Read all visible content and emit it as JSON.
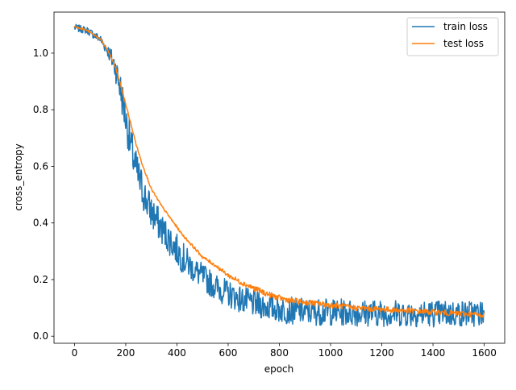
{
  "chart_data": {
    "type": "line",
    "title": "",
    "xlabel": "epoch",
    "ylabel": "cross_entropy",
    "xlim": [
      -80,
      1680
    ],
    "ylim": [
      -0.025,
      1.145
    ],
    "xticks": [
      0,
      200,
      400,
      600,
      800,
      1000,
      1200,
      1400,
      1600
    ],
    "yticks": [
      0.0,
      0.2,
      0.4,
      0.6,
      0.8,
      1.0
    ],
    "ytick_labels": [
      "0.0",
      "0.2",
      "0.4",
      "0.6",
      "0.8",
      "1.0"
    ],
    "grid": false,
    "legend_position": "top-right",
    "series": [
      {
        "name": "train loss",
        "color": "#1f77b4",
        "noisy": true,
        "x": [
          0,
          50,
          100,
          130,
          160,
          180,
          200,
          220,
          240,
          260,
          280,
          300,
          340,
          380,
          420,
          460,
          500,
          550,
          600,
          650,
          700,
          750,
          800,
          850,
          900,
          1000,
          1100,
          1200,
          1300,
          1400,
          1500,
          1600
        ],
        "y": [
          1.09,
          1.08,
          1.05,
          1.01,
          0.95,
          0.87,
          0.77,
          0.67,
          0.59,
          0.53,
          0.48,
          0.44,
          0.38,
          0.33,
          0.28,
          0.24,
          0.21,
          0.175,
          0.15,
          0.13,
          0.115,
          0.105,
          0.095,
          0.09,
          0.087,
          0.085,
          0.083,
          0.082,
          0.081,
          0.08,
          0.08,
          0.08
        ],
        "noise": [
          0.008,
          0.008,
          0.01,
          0.015,
          0.03,
          0.04,
          0.04,
          0.045,
          0.045,
          0.045,
          0.04,
          0.04,
          0.035,
          0.035,
          0.035,
          0.03,
          0.03,
          0.03,
          0.03,
          0.03,
          0.03,
          0.03,
          0.03,
          0.03,
          0.03,
          0.03,
          0.03,
          0.03,
          0.03,
          0.03,
          0.03,
          0.03
        ]
      },
      {
        "name": "test loss",
        "color": "#ff7f0e",
        "noisy": false,
        "x": [
          0,
          50,
          100,
          130,
          160,
          180,
          200,
          220,
          240,
          260,
          280,
          300,
          340,
          380,
          420,
          460,
          500,
          550,
          600,
          650,
          700,
          750,
          800,
          850,
          900,
          1000,
          1100,
          1200,
          1300,
          1400,
          1500,
          1600
        ],
        "y": [
          1.095,
          1.08,
          1.05,
          1.01,
          0.95,
          0.89,
          0.82,
          0.75,
          0.68,
          0.62,
          0.57,
          0.52,
          0.46,
          0.41,
          0.36,
          0.32,
          0.28,
          0.25,
          0.215,
          0.19,
          0.17,
          0.15,
          0.135,
          0.125,
          0.12,
          0.11,
          0.1,
          0.095,
          0.09,
          0.085,
          0.08,
          0.075
        ],
        "noise": [
          0.003,
          0.003,
          0.003,
          0.003,
          0.004,
          0.004,
          0.004,
          0.004,
          0.004,
          0.004,
          0.004,
          0.004,
          0.004,
          0.004,
          0.004,
          0.005,
          0.005,
          0.006,
          0.008,
          0.009,
          0.01,
          0.01,
          0.01,
          0.01,
          0.01,
          0.01,
          0.01,
          0.01,
          0.01,
          0.01,
          0.01,
          0.01
        ]
      }
    ]
  }
}
